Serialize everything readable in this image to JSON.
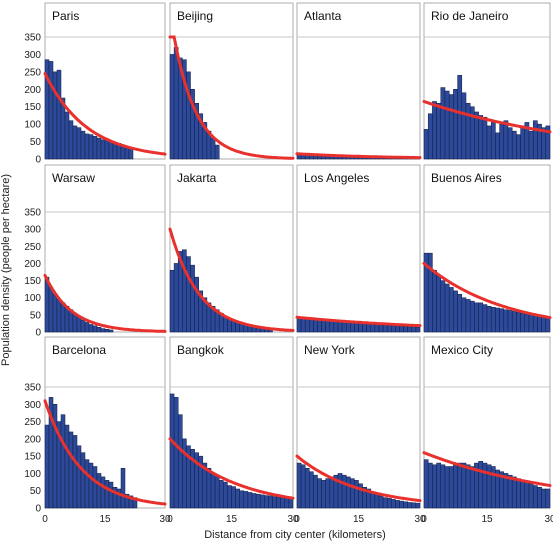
{
  "chart_data": {
    "type": "bar",
    "xlabel": "Distance from city center (kilometers)",
    "ylabel": "Population density (people per hectare)",
    "y_ticks": [
      "350",
      "300",
      "250",
      "200",
      "150",
      "100",
      "50",
      "0"
    ],
    "x_ticks": [
      "0",
      "15",
      "30"
    ],
    "xlim": [
      0,
      30
    ],
    "ylim": [
      0,
      350
    ],
    "bar_color": "#2d4a9a",
    "fit_color": "#e8302c",
    "grid": false,
    "legend": "none",
    "panels": [
      {
        "city": "Paris",
        "density": [
          285,
          280,
          250,
          255,
          175,
          135,
          110,
          95,
          90,
          80,
          72,
          70,
          65,
          60,
          55,
          52,
          50,
          48,
          45,
          40,
          35,
          30
        ],
        "fit": {
          "a": 245,
          "b": 0.095
        }
      },
      {
        "city": "Beijing",
        "density": [
          300,
          320,
          290,
          285,
          250,
          200,
          160,
          130,
          105,
          80,
          60,
          40
        ],
        "fit": {
          "a": 420,
          "b": 0.18
        }
      },
      {
        "city": "Atlanta",
        "density": [
          18,
          15,
          13,
          11,
          10,
          9,
          8,
          8,
          7,
          7,
          6,
          6,
          6,
          5,
          5,
          5,
          5,
          5,
          4,
          4,
          4,
          4,
          4,
          4,
          4,
          4,
          4,
          4,
          4,
          4
        ],
        "fit": {
          "a": 15,
          "b": 0.045
        }
      },
      {
        "city": "Rio de Janeiro",
        "density": [
          85,
          130,
          165,
          160,
          205,
          195,
          185,
          200,
          240,
          190,
          160,
          150,
          135,
          125,
          120,
          95,
          105,
          75,
          100,
          110,
          90,
          80,
          70,
          95,
          105,
          80,
          110,
          100,
          90,
          95
        ],
        "fit": {
          "a": 165,
          "b": 0.025
        }
      },
      {
        "city": "Warsaw",
        "density": [
          160,
          130,
          110,
          95,
          85,
          75,
          65,
          55,
          45,
          35,
          28,
          22,
          18,
          14,
          10,
          8,
          6
        ],
        "fit": {
          "a": 165,
          "b": 0.15
        }
      },
      {
        "city": "Jakarta",
        "density": [
          180,
          200,
          235,
          240,
          220,
          195,
          160,
          120,
          100,
          85,
          75,
          65,
          55,
          45,
          38,
          32,
          28,
          24,
          20,
          18,
          15,
          13,
          10,
          8,
          6
        ],
        "fit": {
          "a": 300,
          "b": 0.14
        }
      },
      {
        "city": "Los Angeles",
        "density": [
          40,
          38,
          37,
          36,
          35,
          34,
          33,
          32,
          31,
          30,
          30,
          29,
          28,
          27,
          26,
          25,
          24,
          23,
          22,
          21,
          20,
          20,
          19,
          18,
          18,
          17,
          16,
          15,
          15,
          14
        ],
        "fit": {
          "a": 43,
          "b": 0.028
        }
      },
      {
        "city": "Buenos Aires",
        "density": [
          230,
          230,
          180,
          165,
          150,
          140,
          130,
          120,
          110,
          100,
          95,
          90,
          85,
          85,
          80,
          75,
          72,
          70,
          68,
          65,
          63,
          60,
          58,
          55,
          52,
          50,
          48,
          47,
          45,
          44
        ],
        "fit": {
          "a": 200,
          "b": 0.052
        }
      },
      {
        "city": "Barcelona",
        "density": [
          240,
          320,
          300,
          250,
          270,
          240,
          220,
          210,
          180,
          160,
          140,
          130,
          120,
          100,
          90,
          80,
          75,
          60,
          55,
          115,
          40,
          35,
          30
        ],
        "fit": {
          "a": 310,
          "b": 0.11
        }
      },
      {
        "city": "Bangkok",
        "density": [
          330,
          320,
          270,
          200,
          180,
          170,
          160,
          150,
          130,
          115,
          100,
          90,
          80,
          75,
          65,
          62,
          55,
          50,
          48,
          45,
          42,
          40,
          38,
          36,
          35,
          33,
          31,
          30,
          30,
          30
        ],
        "fit": {
          "a": 200,
          "b": 0.065
        }
      },
      {
        "city": "New York",
        "density": [
          130,
          125,
          115,
          105,
          95,
          85,
          80,
          85,
          90,
          95,
          100,
          95,
          90,
          85,
          80,
          70,
          60,
          55,
          45,
          40,
          35,
          30,
          28,
          25,
          22,
          20,
          18,
          16,
          15,
          14
        ],
        "fit": {
          "a": 150,
          "b": 0.065
        }
      },
      {
        "city": "Mexico City",
        "density": [
          140,
          130,
          125,
          130,
          125,
          120,
          120,
          125,
          130,
          130,
          125,
          120,
          130,
          135,
          130,
          125,
          120,
          110,
          105,
          100,
          95,
          90,
          85,
          80,
          75,
          70,
          65,
          60,
          55,
          55
        ],
        "fit": {
          "a": 160,
          "b": 0.03
        }
      }
    ]
  }
}
